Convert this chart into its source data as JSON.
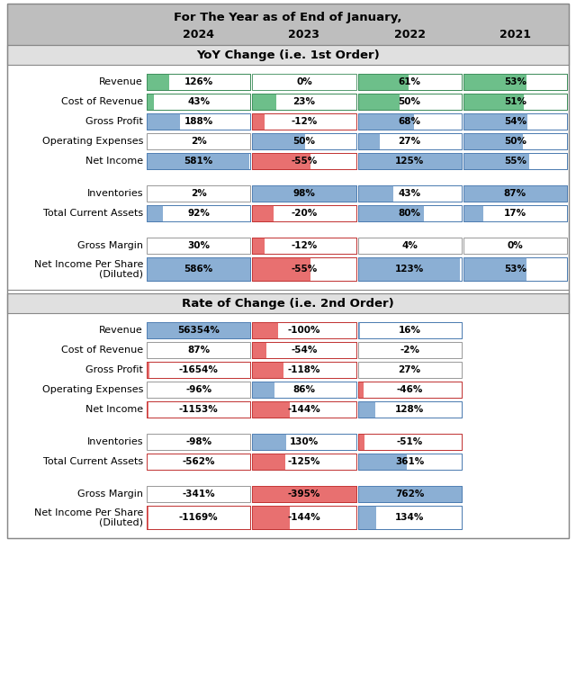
{
  "title_line1": "For The Year as of End of January,",
  "years": [
    "2024",
    "2023",
    "2022",
    "2021"
  ],
  "section1_title": "YoY Change (i.e. 1st Order)",
  "section2_title": "Rate of Change (i.e. 2nd Order)",
  "section1_groups": [
    {
      "rows": [
        {
          "label": "Revenue",
          "values": [
            126,
            0,
            61,
            53
          ],
          "colors": [
            "green",
            "green",
            "green",
            "green"
          ]
        },
        {
          "label": "Cost of Revenue",
          "values": [
            43,
            23,
            50,
            51
          ],
          "colors": [
            "green",
            "green",
            "green",
            "green"
          ]
        },
        {
          "label": "Gross Profit",
          "values": [
            188,
            -12,
            68,
            54
          ],
          "colors": [
            "blue",
            "red",
            "blue",
            "blue"
          ]
        },
        {
          "label": "Operating Expenses",
          "values": [
            2,
            50,
            27,
            50
          ],
          "colors": [
            "none",
            "blue",
            "blue",
            "blue"
          ]
        },
        {
          "label": "Net Income",
          "values": [
            581,
            -55,
            125,
            55
          ],
          "colors": [
            "blue",
            "red",
            "blue",
            "blue"
          ]
        }
      ]
    },
    {
      "rows": [
        {
          "label": "Inventories",
          "values": [
            2,
            98,
            43,
            87
          ],
          "colors": [
            "none",
            "blue",
            "blue",
            "blue"
          ]
        },
        {
          "label": "Total Current Assets",
          "values": [
            92,
            -20,
            80,
            17
          ],
          "colors": [
            "blue",
            "red",
            "blue",
            "blue"
          ]
        }
      ]
    },
    {
      "rows": [
        {
          "label": "Gross Margin",
          "values": [
            30,
            -12,
            4,
            0
          ],
          "colors": [
            "none",
            "red",
            "none",
            "none"
          ]
        },
        {
          "label": "Net Income Per Share\n(Diluted)",
          "values": [
            586,
            -55,
            123,
            53
          ],
          "colors": [
            "blue",
            "red",
            "blue",
            "blue"
          ]
        }
      ]
    }
  ],
  "section2_groups": [
    {
      "rows": [
        {
          "label": "Revenue",
          "values": [
            56354,
            -100,
            16,
            null
          ],
          "colors": [
            "blue",
            "red",
            "blue",
            "none"
          ]
        },
        {
          "label": "Cost of Revenue",
          "values": [
            87,
            -54,
            -2,
            null
          ],
          "colors": [
            "none",
            "red",
            "none",
            "none"
          ]
        },
        {
          "label": "Gross Profit",
          "values": [
            -1654,
            -118,
            27,
            null
          ],
          "colors": [
            "red",
            "red",
            "none",
            "none"
          ]
        },
        {
          "label": "Operating Expenses",
          "values": [
            -96,
            86,
            -46,
            null
          ],
          "colors": [
            "none",
            "blue",
            "red",
            "none"
          ]
        },
        {
          "label": "Net Income",
          "values": [
            -1153,
            -144,
            128,
            null
          ],
          "colors": [
            "red",
            "red",
            "blue",
            "none"
          ]
        }
      ]
    },
    {
      "rows": [
        {
          "label": "Inventories",
          "values": [
            -98,
            130,
            -51,
            null
          ],
          "colors": [
            "none",
            "blue",
            "red",
            "none"
          ]
        },
        {
          "label": "Total Current Assets",
          "values": [
            -562,
            -125,
            361,
            null
          ],
          "colors": [
            "red",
            "red",
            "blue",
            "none"
          ]
        }
      ]
    },
    {
      "rows": [
        {
          "label": "Gross Margin",
          "values": [
            -341,
            -395,
            762,
            null
          ],
          "colors": [
            "none",
            "red",
            "blue",
            "none"
          ]
        },
        {
          "label": "Net Income Per Share\n(Diluted)",
          "values": [
            -1169,
            -144,
            134,
            null
          ],
          "colors": [
            "red",
            "red",
            "blue",
            "none"
          ]
        }
      ]
    }
  ],
  "green_fill": "#6DBF8A",
  "green_border": "#3A8A57",
  "blue_fill": "#8BAFD4",
  "blue_border": "#4A7AAF",
  "red_fill": "#E87070",
  "red_border": "#C03030",
  "none_fill": null,
  "none_border": "#888888",
  "bg_color": "#FFFFFF",
  "header_bg": "#BEBEBE",
  "section_title_bg": "#E0E0E0",
  "section_border": "#888888",
  "label_fontsize": 8.0,
  "cell_fontsize": 7.5,
  "title_fontsize": 9.5,
  "year_fontsize": 9.0,
  "section_title_fontsize": 9.5
}
